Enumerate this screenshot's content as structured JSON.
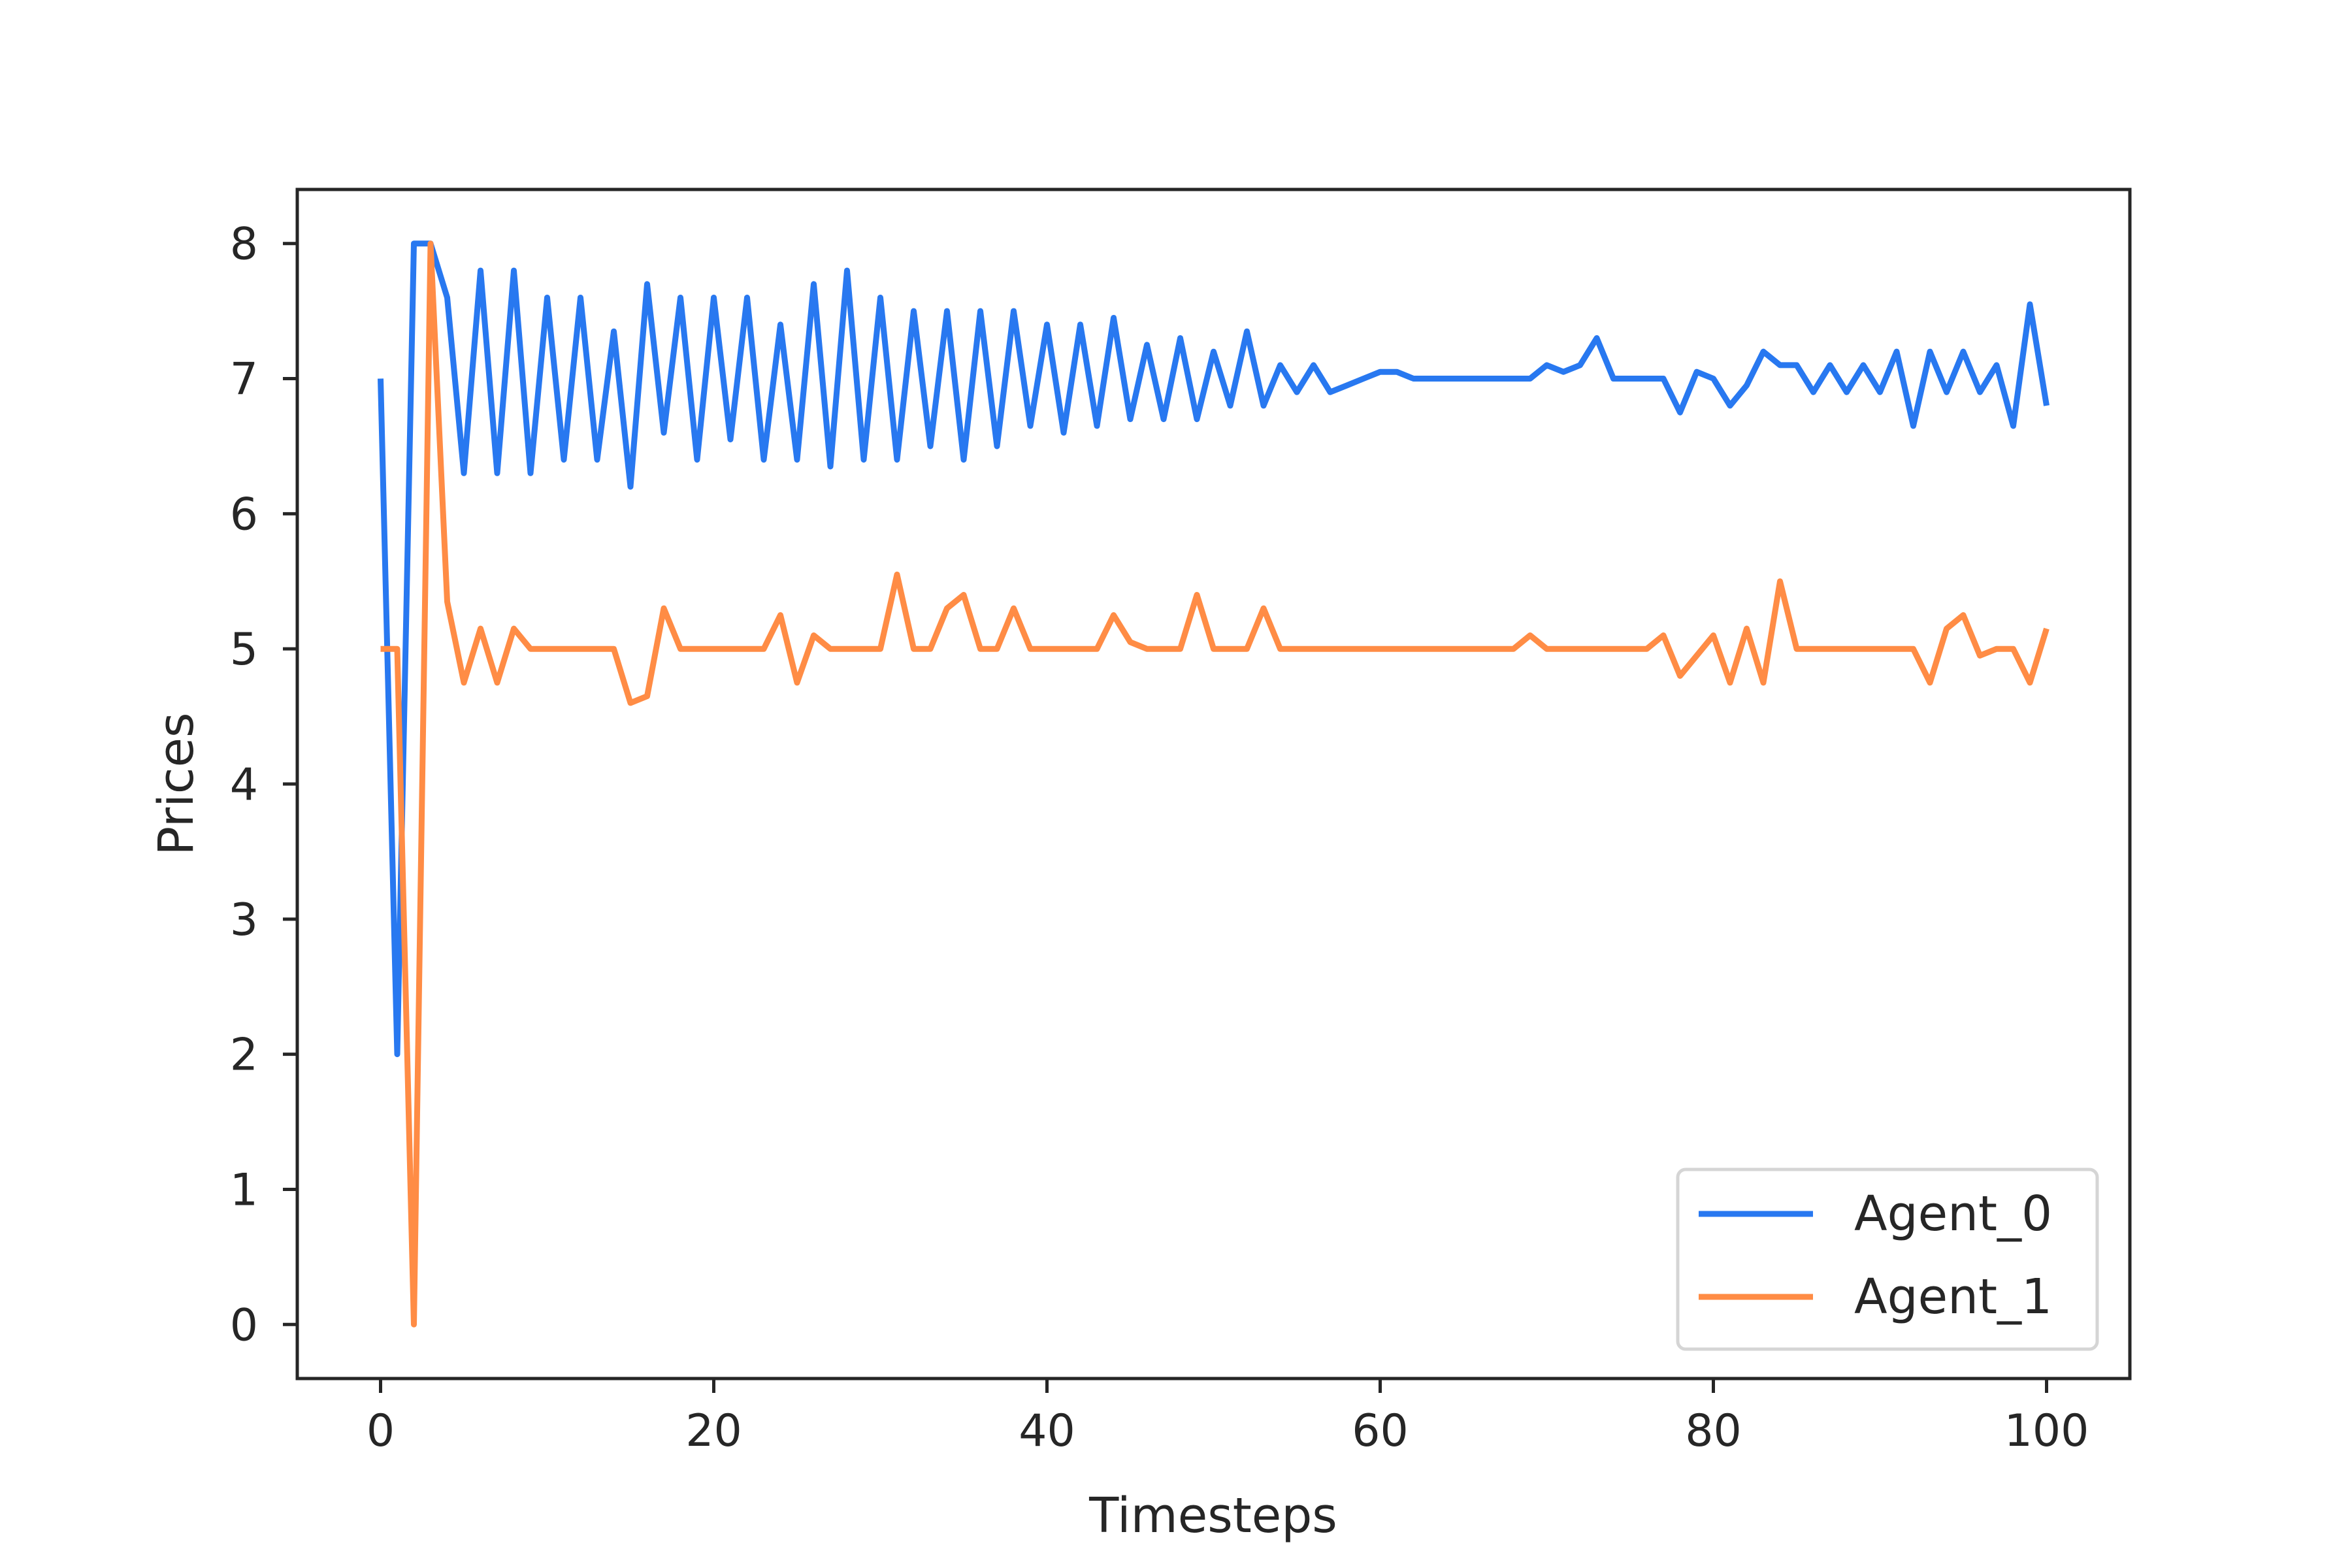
{
  "chart_data": {
    "type": "line",
    "title": "",
    "xlabel": "Timesteps",
    "ylabel": "Prices",
    "xlim": [
      -5,
      105
    ],
    "ylim": [
      -0.4,
      8.4
    ],
    "xticks": [
      0,
      20,
      40,
      60,
      80,
      100
    ],
    "yticks": [
      0,
      1,
      2,
      3,
      4,
      5,
      6,
      7,
      8
    ],
    "grid": false,
    "legend_position": "lower-right",
    "x": [
      0,
      1,
      2,
      3,
      4,
      5,
      6,
      7,
      8,
      9,
      10,
      11,
      12,
      13,
      14,
      15,
      16,
      17,
      18,
      19,
      20,
      21,
      22,
      23,
      24,
      25,
      26,
      27,
      28,
      29,
      30,
      31,
      32,
      33,
      34,
      35,
      36,
      37,
      38,
      39,
      40,
      41,
      42,
      43,
      44,
      45,
      46,
      47,
      48,
      49,
      50,
      51,
      52,
      53,
      54,
      55,
      56,
      57,
      58,
      59,
      60,
      61,
      62,
      63,
      64,
      65,
      66,
      67,
      68,
      69,
      70,
      71,
      72,
      73,
      74,
      75,
      76,
      77,
      78,
      79,
      80,
      81,
      82,
      83,
      84,
      85,
      86,
      87,
      88,
      89,
      90,
      91,
      92,
      93,
      94,
      95,
      96,
      97,
      98,
      99,
      100
    ],
    "series": [
      {
        "name": "Agent_0",
        "color": "#2878f0",
        "values": [
          7,
          2,
          8,
          8,
          7.6,
          6.3,
          7.8,
          6.3,
          7.8,
          6.3,
          7.6,
          6.4,
          7.6,
          6.4,
          7.35,
          6.2,
          7.7,
          6.6,
          7.6,
          6.4,
          7.6,
          6.55,
          7.6,
          6.4,
          7.4,
          6.4,
          7.7,
          6.35,
          7.8,
          6.4,
          7.6,
          6.4,
          7.5,
          6.5,
          7.5,
          6.4,
          7.5,
          6.5,
          7.5,
          6.65,
          7.4,
          6.6,
          7.4,
          6.65,
          7.45,
          6.7,
          7.25,
          6.7,
          7.3,
          6.7,
          7.2,
          6.8,
          7.35,
          6.8,
          7.1,
          6.9,
          7.1,
          6.9,
          6.95,
          7,
          7.05,
          7.05,
          7,
          7,
          7,
          7,
          7,
          7,
          7,
          7,
          7.1,
          7.05,
          7.1,
          7.3,
          7,
          7,
          7,
          7,
          6.75,
          7.05,
          7,
          6.8,
          6.95,
          7.2,
          7.1,
          7.1,
          6.9,
          7.1,
          6.9,
          7.1,
          6.9,
          7.2,
          6.65,
          7.2,
          6.9,
          7.2,
          6.9,
          7.1,
          6.65,
          7.55,
          6.8
        ]
      },
      {
        "name": "Agent_1",
        "color": "#ff8c45",
        "values": [
          5,
          5,
          0,
          8,
          5.35,
          4.75,
          5.15,
          4.75,
          5.15,
          5,
          5,
          5,
          5,
          5,
          5,
          4.6,
          4.65,
          5.3,
          5,
          5,
          5,
          5,
          5,
          5,
          5.25,
          4.75,
          5.1,
          5,
          5,
          5,
          5,
          5.55,
          5,
          5,
          5.3,
          5.4,
          5,
          5,
          5.3,
          5,
          5,
          5,
          5,
          5,
          5.25,
          5.05,
          5,
          5,
          5,
          5.4,
          5,
          5,
          5,
          5.3,
          5,
          5,
          5,
          5,
          5,
          5,
          5,
          5,
          5,
          5,
          5,
          5,
          5,
          5,
          5,
          5.1,
          5,
          5,
          5,
          5,
          5,
          5,
          5,
          5.1,
          4.8,
          4.95,
          5.1,
          4.75,
          5.15,
          4.75,
          5.5,
          5,
          5,
          5,
          5,
          5,
          5,
          5,
          5,
          4.75,
          5.15,
          5.25,
          4.95,
          5,
          5,
          4.75,
          5.15
        ]
      }
    ]
  }
}
